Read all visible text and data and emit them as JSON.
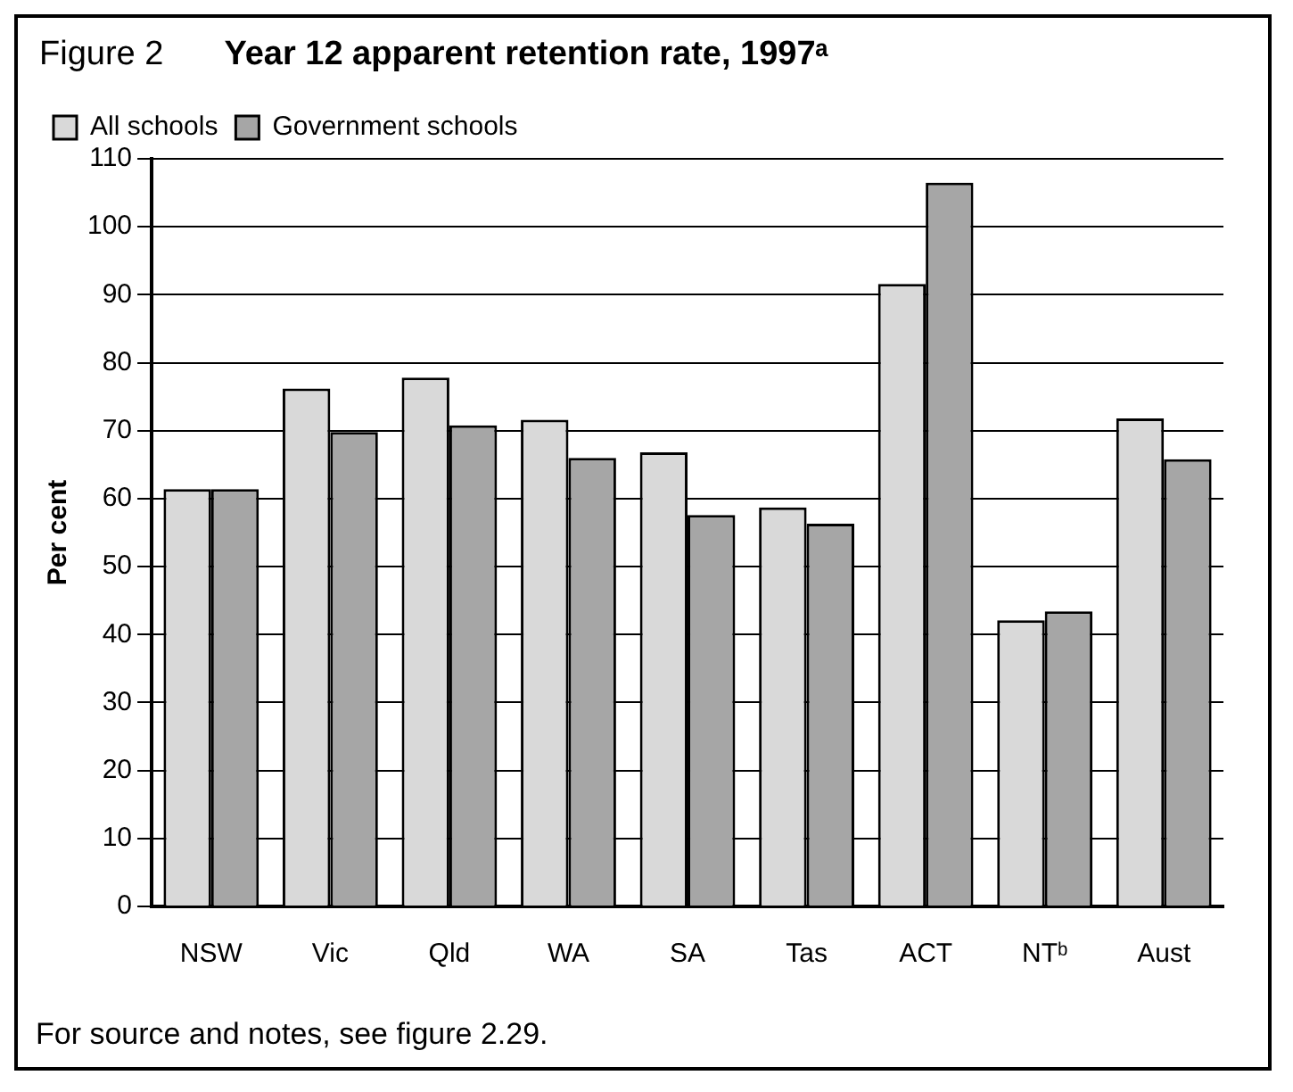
{
  "chart_data": {
    "type": "bar",
    "subtitle": "Figure 2",
    "title": "Year 12 apparent retention rate, 1997ᵃ",
    "ylabel": "Per cent",
    "categories": [
      "NSW",
      "Vic",
      "Qld",
      "WA",
      "SA",
      "Tas",
      "ACT",
      "NTᵇ",
      "Aust"
    ],
    "series": [
      {
        "name": "All schools",
        "color": "#d9d9d9",
        "values": [
          61.4,
          76.2,
          77.8,
          71.6,
          66.8,
          58.7,
          91.6,
          42.1,
          71.8
        ]
      },
      {
        "name": "Government schools",
        "color": "#a6a6a6",
        "values": [
          61.4,
          69.8,
          70.8,
          66.0,
          57.6,
          56.3,
          106.5,
          43.4,
          65.8
        ]
      }
    ],
    "ylim": [
      0,
      110
    ],
    "yticks": [
      0,
      10,
      20,
      30,
      40,
      50,
      60,
      70,
      80,
      90,
      100,
      110
    ],
    "grid": "y",
    "legend": "top left",
    "annotations": [
      "For source and notes, see figure 2.29."
    ]
  }
}
